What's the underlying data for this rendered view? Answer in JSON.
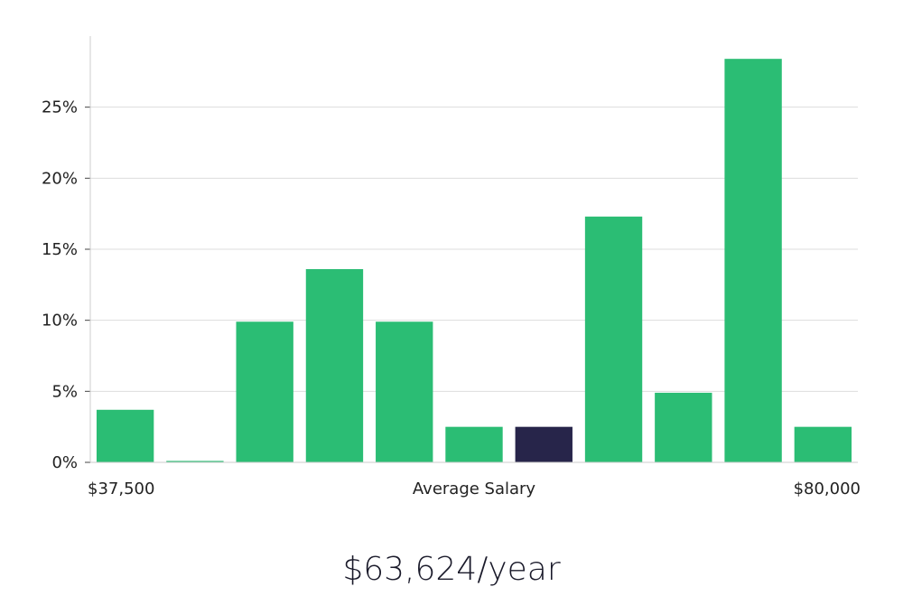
{
  "chart_data": {
    "type": "bar",
    "xlabel": "Average Salary",
    "x_range_labels": {
      "min": "$37,500",
      "max": "$80,000"
    },
    "categories": [
      "bin-1",
      "bin-2",
      "bin-3",
      "bin-4",
      "bin-5",
      "bin-6",
      "bin-7",
      "bin-8",
      "bin-9",
      "bin-10",
      "bin-11"
    ],
    "values": [
      3.7,
      0.1,
      9.9,
      13.6,
      9.9,
      2.5,
      2.5,
      17.3,
      4.9,
      28.4,
      2.5
    ],
    "highlight_index": 6,
    "yticks": [
      0,
      5,
      10,
      15,
      20,
      25
    ],
    "ytick_labels": [
      "0%",
      "5%",
      "10%",
      "15%",
      "20%",
      "25%"
    ],
    "ylim": [
      0,
      30
    ],
    "grid": true,
    "colors": {
      "bar": "#2bbd74",
      "highlight": "#27254a",
      "grid": "#dddddd",
      "axis": "#cccccc"
    }
  },
  "salary_caption": "$63,624/year"
}
